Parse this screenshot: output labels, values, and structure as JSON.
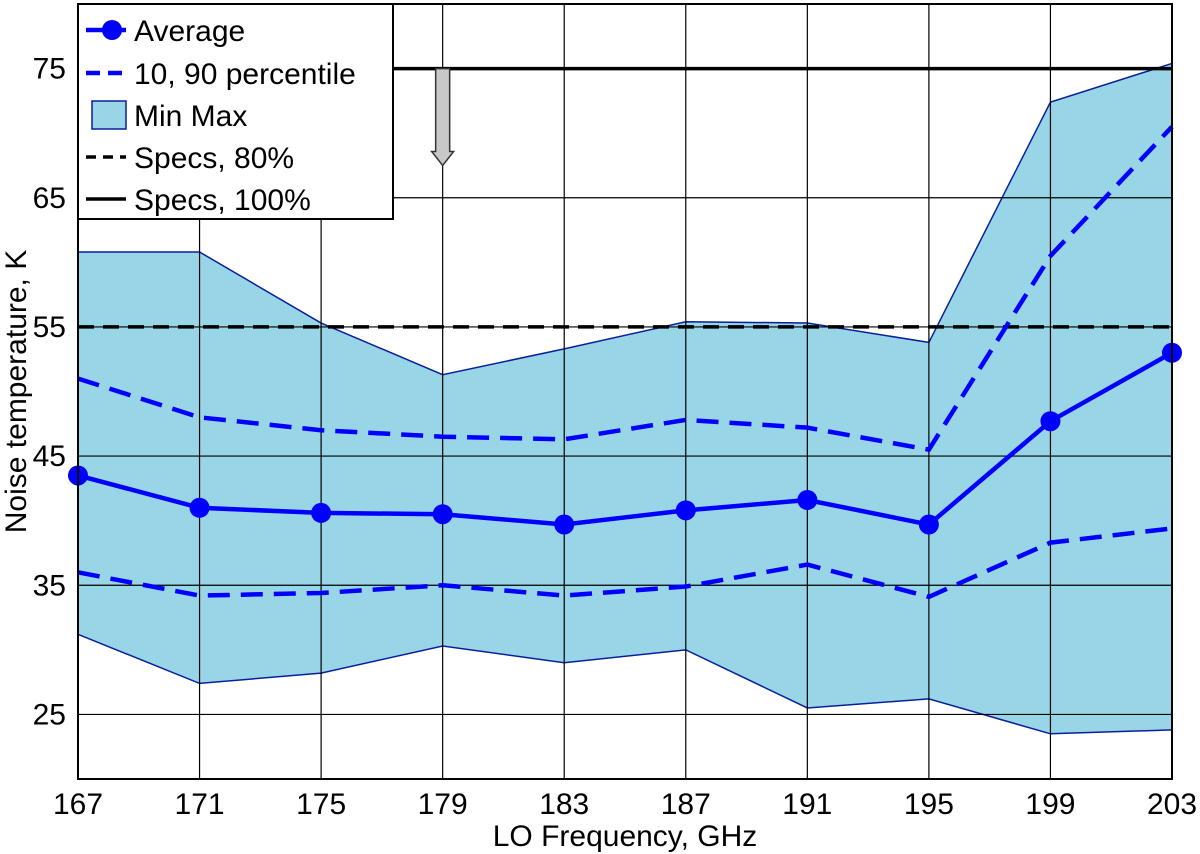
{
  "chart_data": {
    "type": "line",
    "xlabel": "LO Frequency, GHz",
    "ylabel": "Noise temperature, K",
    "x": [
      167,
      171,
      175,
      179,
      183,
      187,
      191,
      195,
      199,
      203
    ],
    "xlim": [
      167,
      203
    ],
    "ylim": [
      20,
      80
    ],
    "xticks": [
      167,
      171,
      175,
      179,
      183,
      187,
      191,
      195,
      199,
      203
    ],
    "yticks": [
      25,
      35,
      45,
      55,
      65,
      75
    ],
    "grid": true,
    "legend_position": "top-left",
    "series": [
      {
        "name": "Average",
        "style": "solid-markers",
        "color": "#0000ff",
        "values": [
          43.5,
          41.0,
          40.6,
          40.5,
          39.7,
          40.8,
          41.6,
          39.7,
          47.7,
          53.0
        ]
      },
      {
        "name": "10, 90 percentile",
        "style": "dashed",
        "color": "#0000ff",
        "upper": [
          51.0,
          48.0,
          47.0,
          46.5,
          46.3,
          47.8,
          47.2,
          45.5,
          60.5,
          70.5
        ],
        "lower": [
          36.0,
          34.2,
          34.4,
          35.0,
          34.2,
          34.9,
          36.6,
          34.1,
          38.3,
          39.4
        ]
      },
      {
        "name": "Min Max",
        "style": "band",
        "color": "#98d5e6",
        "max": [
          60.8,
          60.8,
          55.3,
          51.3,
          53.3,
          55.4,
          55.3,
          53.8,
          72.4,
          75.4
        ],
        "min": [
          31.2,
          27.4,
          28.2,
          30.3,
          29.0,
          30.0,
          25.5,
          26.2,
          23.5,
          23.8
        ]
      },
      {
        "name": "Specs, 80%",
        "style": "dashed-black",
        "color": "#000000",
        "value": 55
      },
      {
        "name": "Specs, 100%",
        "style": "solid-black",
        "color": "#000000",
        "value": 75
      }
    ],
    "annotations": [
      {
        "type": "down-arrow",
        "x": 179,
        "y_from": 75,
        "y_to": 67.5,
        "color": "#c8c8c8"
      }
    ]
  }
}
